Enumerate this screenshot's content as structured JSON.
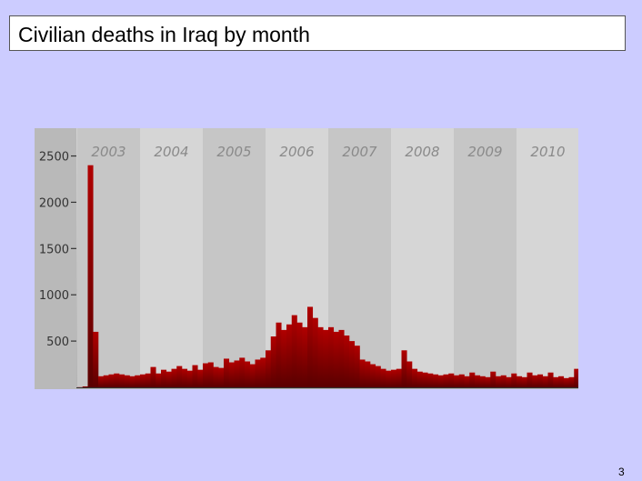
{
  "slide": {
    "title": "Civilian deaths in Iraq by month",
    "page_number": "3",
    "background_color": "#ccccff"
  },
  "chart_data": {
    "type": "bar",
    "title": "",
    "xlabel": "",
    "ylabel": "",
    "x_labels": [
      "2003",
      "2004",
      "2005",
      "2006",
      "2007",
      "2008",
      "2009",
      "2010"
    ],
    "y_ticks": [
      500,
      1000,
      1500,
      2000,
      2500
    ],
    "ylim": [
      0,
      2800
    ],
    "grid": false,
    "bar_color": "#990000",
    "series": [
      {
        "x": [
          "2003-01",
          "2003-02",
          "2003-03",
          "2003-04",
          "2003-05",
          "2003-06",
          "2003-07",
          "2003-08",
          "2003-09",
          "2003-10",
          "2003-11",
          "2003-12",
          "2004-01",
          "2004-02",
          "2004-03",
          "2004-04",
          "2004-05",
          "2004-06",
          "2004-07",
          "2004-08",
          "2004-09",
          "2004-10",
          "2004-11",
          "2004-12",
          "2005-01",
          "2005-02",
          "2005-03",
          "2005-04",
          "2005-05",
          "2005-06",
          "2005-07",
          "2005-08",
          "2005-09",
          "2005-10",
          "2005-11",
          "2005-12",
          "2006-01",
          "2006-02",
          "2006-03",
          "2006-04",
          "2006-05",
          "2006-06",
          "2006-07",
          "2006-08",
          "2006-09",
          "2006-10",
          "2006-11",
          "2006-12",
          "2007-01",
          "2007-02",
          "2007-03",
          "2007-04",
          "2007-05",
          "2007-06",
          "2007-07",
          "2007-08",
          "2007-09",
          "2007-10",
          "2007-11",
          "2007-12",
          "2008-01",
          "2008-02",
          "2008-03",
          "2008-04",
          "2008-05",
          "2008-06",
          "2008-07",
          "2008-08",
          "2008-09",
          "2008-10",
          "2008-11",
          "2008-12",
          "2009-01",
          "2009-02",
          "2009-03",
          "2009-04",
          "2009-05",
          "2009-06",
          "2009-07",
          "2009-08",
          "2009-09",
          "2009-10",
          "2009-11",
          "2009-12",
          "2010-01",
          "2010-02",
          "2010-03",
          "2010-04",
          "2010-05",
          "2010-06",
          "2010-07",
          "2010-08",
          "2010-09",
          "2010-10",
          "2010-11",
          "2010-12"
        ],
        "values": [
          2,
          10,
          2400,
          600,
          120,
          130,
          140,
          150,
          140,
          130,
          120,
          130,
          140,
          150,
          220,
          150,
          190,
          170,
          200,
          230,
          200,
          180,
          240,
          190,
          260,
          270,
          220,
          210,
          310,
          270,
          290,
          320,
          280,
          250,
          300,
          320,
          400,
          550,
          700,
          620,
          680,
          780,
          700,
          650,
          870,
          750,
          650,
          620,
          650,
          600,
          620,
          560,
          500,
          450,
          300,
          280,
          250,
          230,
          200,
          180,
          190,
          200,
          400,
          280,
          200,
          170,
          160,
          150,
          140,
          130,
          140,
          150,
          130,
          140,
          120,
          160,
          130,
          120,
          110,
          170,
          120,
          130,
          110,
          150,
          120,
          110,
          160,
          130,
          140,
          120,
          160,
          110,
          120,
          100,
          110,
          200
        ]
      }
    ]
  }
}
